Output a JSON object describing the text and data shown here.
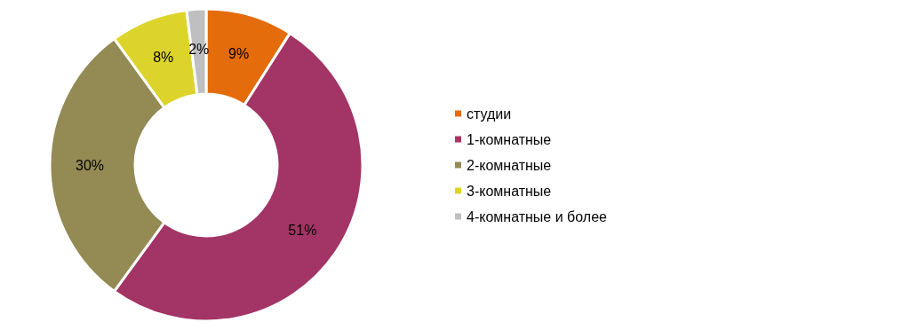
{
  "chart_data": {
    "type": "donut",
    "categories": [
      "студии",
      "1-комнатные",
      "2-комнатные",
      "3-комнатные",
      "4-комнатные и более"
    ],
    "values": [
      9,
      51,
      30,
      8,
      2
    ],
    "colors": [
      "#e46c0a",
      "#a23565",
      "#948a54",
      "#dcd42a",
      "#bfbfbf"
    ],
    "value_labels": [
      "9%",
      "51%",
      "30%",
      "8%",
      "2%"
    ],
    "legend": "right"
  }
}
